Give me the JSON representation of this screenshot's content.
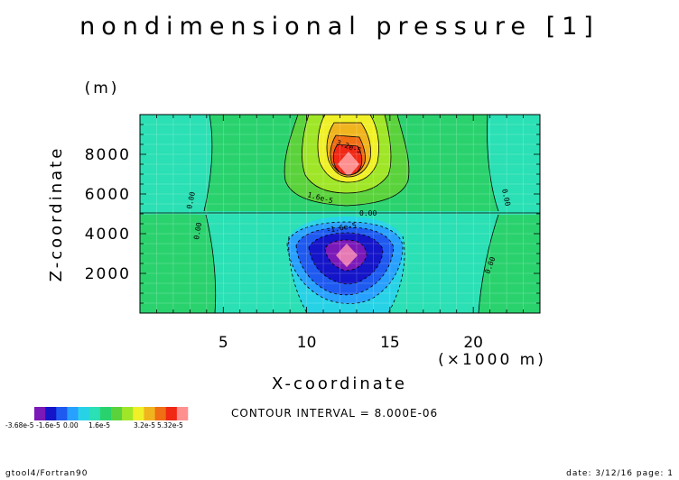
{
  "chart_data": {
    "type": "heatmap",
    "title": "nondimensional pressure [1]",
    "xlabel": "X-coordinate",
    "ylabel": "Z-coordinate",
    "x_unit": "(×1000 m)",
    "y_unit": "(m)",
    "xlim": [
      0,
      24
    ],
    "ylim": [
      0,
      10000
    ],
    "x_ticks": [
      5,
      10,
      15,
      20
    ],
    "x_tick_labels": [
      "5",
      "10",
      "15",
      "20"
    ],
    "y_ticks": [
      2000,
      4000,
      6000,
      8000
    ],
    "y_tick_labels": [
      "2000",
      "4000",
      "6000",
      "8000"
    ],
    "contour_interval_text": "CONTOUR INTERVAL = 8.000E-06",
    "contour_labels": [
      "3.2e-5",
      "1.6e-5",
      "0.00",
      "0.00",
      "0.00",
      "0.00",
      "0.00",
      "-1.6e-5"
    ],
    "colorbar": {
      "colors": [
        "#7a18b8",
        "#1414c8",
        "#1e5af0",
        "#28a0ff",
        "#28d2e6",
        "#2ae0b4",
        "#2ad26e",
        "#5ad23c",
        "#a0e628",
        "#f0f028",
        "#f0b41e",
        "#f06e14",
        "#f02814",
        "#ff9090"
      ],
      "labels": [
        "-3.68e-5",
        "-1.6e-5",
        "0.00",
        "1.6e-5",
        "3.2e-5",
        "5.32e-5"
      ]
    },
    "levels": [
      -3.68e-05,
      -3.2e-05,
      -2.4e-05,
      -1.6e-05,
      -8e-06,
      0,
      8e-06,
      1.6e-05,
      2.4e-05,
      3.2e-05,
      4e-05,
      4.8e-05,
      5.32e-05
    ]
  },
  "footer": {
    "left": "gtool4/Fortran90",
    "right": "date: 3/12/16 page: 1"
  }
}
